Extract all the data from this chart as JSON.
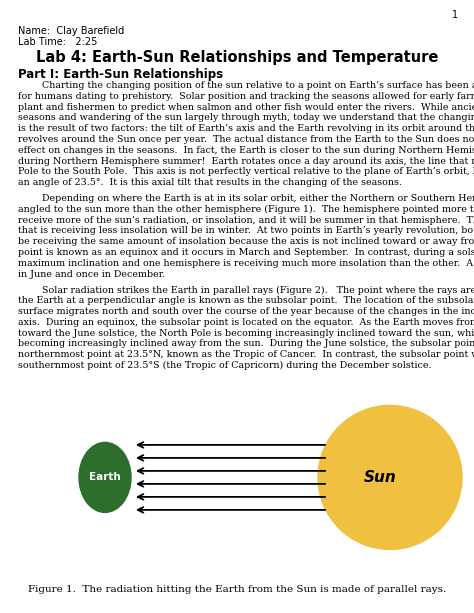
{
  "page_number": "1",
  "name_label": "Name:  Clay Barefield",
  "lab_time_label": "Lab Time:   2:25",
  "title": "Lab 4: Earth-Sun Relationships and Temperature",
  "part1_heading": "Part I: Earth-Sun Relationships",
  "para1_lines": [
    "        Charting the changing position of the sun relative to a point on Earth’s surface has been an essential task",
    "for humans dating to prehistory.  Solar position and tracking the seasons allowed for early farmers to know when to",
    "plant and fishermen to predict when salmon and other fish would enter the rivers.  While ancient man explained the",
    "seasons and wandering of the sun largely through myth, today we understand that the changing position of the sun",
    "is the result of two factors: the tilt of Earth’s axis and the Earth revolving in its orbit around the Sun.  The Earth",
    "revolves around the Sun once per year.  The actual distance from the Earth to the Sun does not have a noticeable",
    "effect on changes in the seasons.  In fact, the Earth is closer to the sun during Northern Hemisphere winter than it is",
    "during Northern Hemisphere summer!  Earth rotates once a day around its axis, the line that runs from the North",
    "Pole to the South Pole.  This axis is not perfectly vertical relative to the plane of Earth’s orbit, but rather is tilted at",
    "an angle of 23.5°.  It is this axial tilt that results in the changing of the seasons."
  ],
  "para2_lines": [
    "        Depending on where the Earth is at in its solar orbit, either the Northern or Southern Hemisphere may be",
    "angled to the sun more than the other hemisphere (Figure 1).  The hemisphere pointed more toward the sun will",
    "receive more of the sun’s radiation, or insolation, and it will be summer in that hemisphere.  The other hemisphere",
    "that is receiving less insolation will be in winter.  At two points in Earth’s yearly revolution, both hemispheres will",
    "be receiving the same amount of insolation because the axis is not inclined toward or away from the sun.  This",
    "point is known as an equinox and it occurs in March and September.  In contrast, during a solstice, the axis is at",
    "maximum inclination and one hemisphere is receiving much more insolation than the other.  A solstice occurs once",
    "in June and once in December."
  ],
  "para3_lines": [
    "        Solar radiation strikes the Earth in parallel rays (Figure 2).   The point where the rays are directly hitting",
    "the Earth at a perpendicular angle is known as the subsolar point.  The location of the subsolar point on the Earth’s",
    "surface migrates north and south over the course of the year because of the changes in the inclination of Earth’s",
    "axis.  During an equinox, the subsolar point is located on the equator.  As the Earth moves from the March equinox",
    "toward the June solstice, the North Pole is becoming increasingly inclined toward the sun, while the South Pole is",
    "becoming increasingly inclined away from the sun.  During the June solstice, the subsolar point reaches its",
    "northernmost point at 23.5°N, known as the Tropic of Cancer.  In contrast, the subsolar point will reach its",
    "southernmost point of 23.5°S (the Tropic of Capricorn) during the December solstice."
  ],
  "fig_caption": "Figure 1.  The radiation hitting the Earth from the Sun is made of parallel rays.",
  "earth_color": "#2d6e2d",
  "sun_color": "#f0c040",
  "arrow_color": "#000000",
  "bg_color": "#ffffff",
  "text_color": "#000000"
}
